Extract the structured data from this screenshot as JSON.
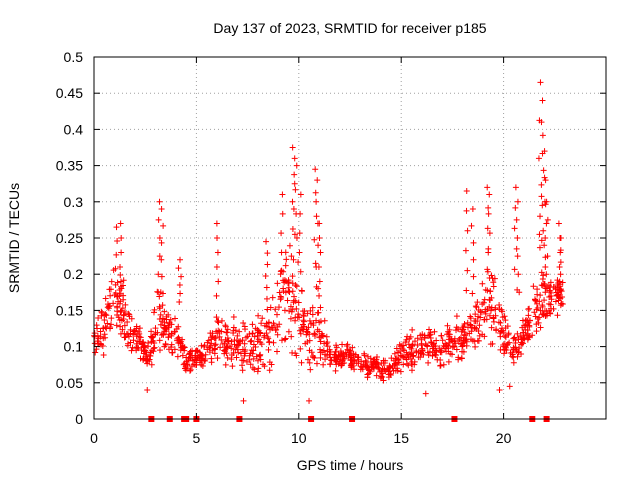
{
  "chart_data": {
    "type": "scatter",
    "title": "Day 137 of 2023, SRMTID for receiver p185",
    "xlabel": "GPS time / hours",
    "ylabel": "SRMTID / TECUs",
    "xlim": [
      0,
      25
    ],
    "ylim": [
      0,
      0.5
    ],
    "xticks": [
      0,
      5,
      10,
      15,
      20
    ],
    "yticks": [
      0,
      0.05,
      0.1,
      0.15,
      0.2,
      0.25,
      0.3,
      0.35,
      0.4,
      0.45,
      0.5
    ],
    "xtick_labels": [
      "0",
      "5",
      "10",
      "15",
      "20"
    ],
    "ytick_labels": [
      "0",
      "0.05",
      "0.1",
      "0.15",
      "0.2",
      "0.25",
      "0.3",
      "0.35",
      "0.4",
      "0.45",
      "0.5"
    ],
    "marker": "+",
    "series_color": "#ff0000",
    "envelope": [
      [
        0.0,
        0.08,
        0.14
      ],
      [
        0.5,
        0.08,
        0.17
      ],
      [
        1.0,
        0.1,
        0.22
      ],
      [
        1.4,
        0.1,
        0.2
      ],
      [
        1.8,
        0.09,
        0.15
      ],
      [
        2.3,
        0.08,
        0.13
      ],
      [
        2.7,
        0.05,
        0.12
      ],
      [
        3.1,
        0.08,
        0.2
      ],
      [
        3.5,
        0.09,
        0.15
      ],
      [
        4.0,
        0.08,
        0.15
      ],
      [
        4.5,
        0.06,
        0.1
      ],
      [
        5.0,
        0.07,
        0.1
      ],
      [
        5.5,
        0.07,
        0.11
      ],
      [
        6.0,
        0.07,
        0.18
      ],
      [
        6.5,
        0.07,
        0.13
      ],
      [
        7.0,
        0.06,
        0.15
      ],
      [
        7.5,
        0.07,
        0.14
      ],
      [
        8.0,
        0.06,
        0.15
      ],
      [
        8.5,
        0.06,
        0.16
      ],
      [
        9.0,
        0.07,
        0.22
      ],
      [
        9.5,
        0.08,
        0.25
      ],
      [
        10.0,
        0.06,
        0.2
      ],
      [
        10.5,
        0.06,
        0.18
      ],
      [
        11.0,
        0.07,
        0.17
      ],
      [
        11.5,
        0.06,
        0.11
      ],
      [
        12.0,
        0.06,
        0.11
      ],
      [
        12.5,
        0.06,
        0.11
      ],
      [
        13.0,
        0.06,
        0.1
      ],
      [
        13.5,
        0.05,
        0.09
      ],
      [
        14.0,
        0.05,
        0.09
      ],
      [
        14.5,
        0.05,
        0.09
      ],
      [
        15.0,
        0.06,
        0.11
      ],
      [
        15.5,
        0.06,
        0.13
      ],
      [
        16.0,
        0.07,
        0.13
      ],
      [
        16.5,
        0.07,
        0.13
      ],
      [
        17.0,
        0.06,
        0.12
      ],
      [
        17.5,
        0.07,
        0.15
      ],
      [
        18.0,
        0.08,
        0.15
      ],
      [
        18.5,
        0.09,
        0.16
      ],
      [
        19.0,
        0.1,
        0.2
      ],
      [
        19.5,
        0.1,
        0.21
      ],
      [
        20.0,
        0.08,
        0.16
      ],
      [
        20.5,
        0.07,
        0.12
      ],
      [
        21.0,
        0.09,
        0.14
      ],
      [
        21.5,
        0.12,
        0.19
      ],
      [
        22.0,
        0.12,
        0.2
      ],
      [
        22.5,
        0.14,
        0.21
      ],
      [
        22.9,
        0.14,
        0.2
      ]
    ],
    "spikes": [
      {
        "x": 1.1,
        "y": 0.265
      },
      {
        "x": 1.3,
        "y": 0.27
      },
      {
        "x": 3.2,
        "y": 0.3
      },
      {
        "x": 3.3,
        "y": 0.29
      },
      {
        "x": 4.2,
        "y": 0.22
      },
      {
        "x": 6.0,
        "y": 0.27
      },
      {
        "x": 8.4,
        "y": 0.245
      },
      {
        "x": 9.2,
        "y": 0.31
      },
      {
        "x": 9.7,
        "y": 0.375
      },
      {
        "x": 9.8,
        "y": 0.36
      },
      {
        "x": 9.9,
        "y": 0.35
      },
      {
        "x": 10.1,
        "y": 0.31
      },
      {
        "x": 10.8,
        "y": 0.345
      },
      {
        "x": 10.9,
        "y": 0.33
      },
      {
        "x": 11.0,
        "y": 0.27
      },
      {
        "x": 18.2,
        "y": 0.315
      },
      {
        "x": 18.5,
        "y": 0.29
      },
      {
        "x": 19.2,
        "y": 0.32
      },
      {
        "x": 19.3,
        "y": 0.31
      },
      {
        "x": 20.6,
        "y": 0.32
      },
      {
        "x": 20.7,
        "y": 0.3
      },
      {
        "x": 21.8,
        "y": 0.465
      },
      {
        "x": 21.9,
        "y": 0.44
      },
      {
        "x": 21.85,
        "y": 0.41
      },
      {
        "x": 22.0,
        "y": 0.37
      },
      {
        "x": 22.05,
        "y": 0.33
      },
      {
        "x": 22.1,
        "y": 0.3
      },
      {
        "x": 22.7,
        "y": 0.27
      },
      {
        "x": 22.8,
        "y": 0.25
      }
    ],
    "lows": [
      {
        "x": 2.6,
        "y": 0.04
      },
      {
        "x": 7.3,
        "y": 0.025
      },
      {
        "x": 10.5,
        "y": 0.025
      },
      {
        "x": 16.2,
        "y": 0.035
      },
      {
        "x": 19.8,
        "y": 0.04
      },
      {
        "x": 20.3,
        "y": 0.045
      }
    ],
    "zero_markers": [
      2.8,
      3.7,
      4.4,
      4.5,
      5.0,
      7.1,
      10.6,
      12.6,
      17.6,
      21.4,
      22.1
    ]
  }
}
